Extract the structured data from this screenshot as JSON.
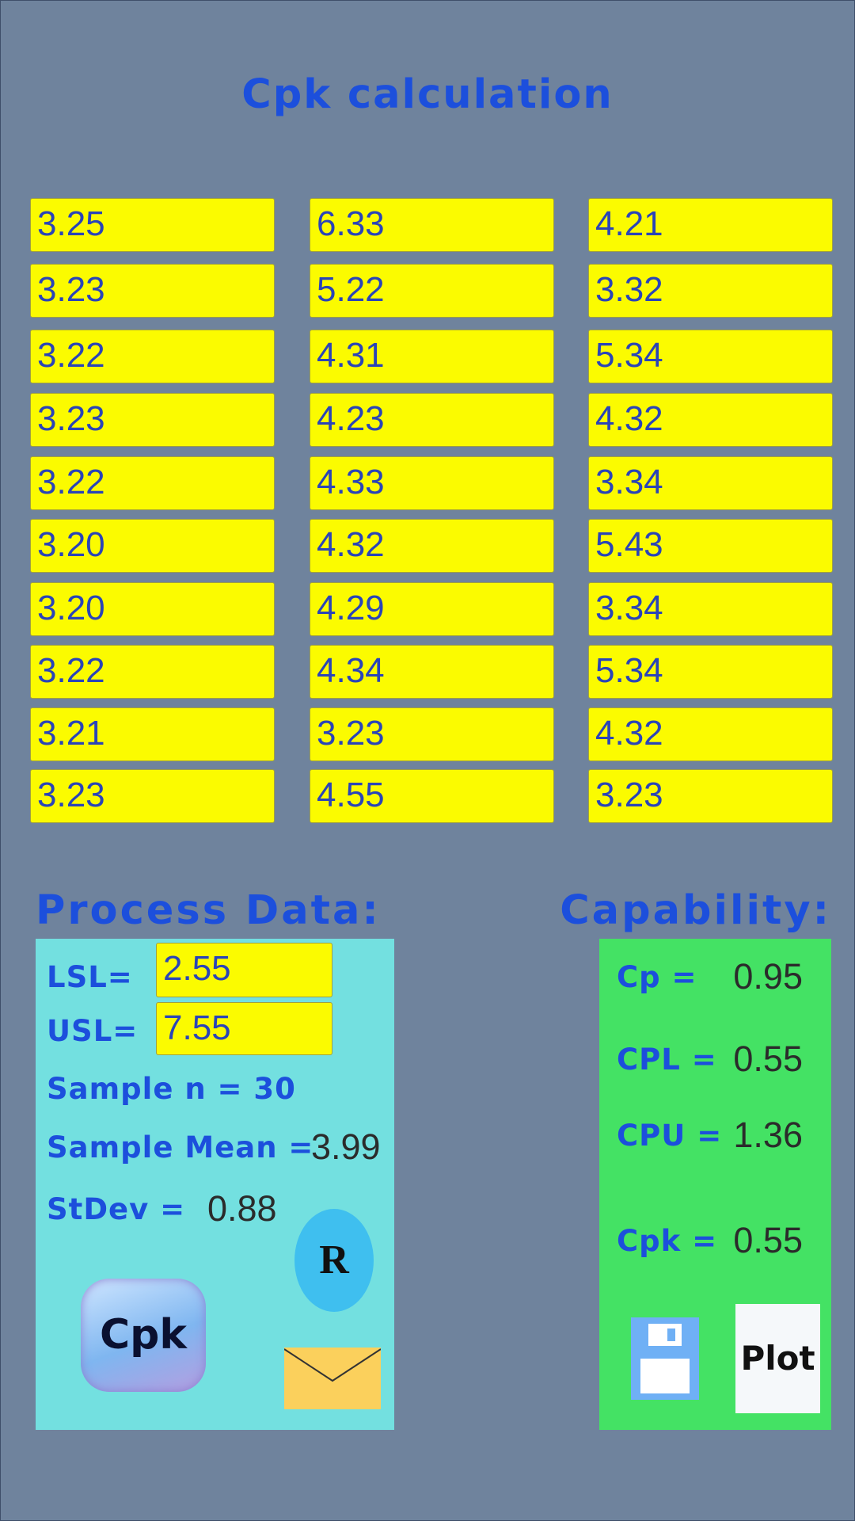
{
  "title": "Cpk calculation",
  "inputs": [
    [
      "3.25",
      "3.23",
      "3.22",
      "3.23",
      "3.22",
      "3.20",
      "3.20",
      "3.22",
      "3.21",
      "3.23"
    ],
    [
      "6.33",
      "5.22",
      "4.31",
      "4.23",
      "4.33",
      "4.32",
      "4.29",
      "4.34",
      "3.23",
      "4.55"
    ],
    [
      "4.21",
      "3.32",
      "5.34",
      "4.32",
      "3.34",
      "5.43",
      "3.34",
      "5.34",
      "4.32",
      "3.23"
    ]
  ],
  "process_data": {
    "heading": "Process Data:",
    "lsl_label": "LSL=",
    "lsl": "2.55",
    "usl_label": "USL=",
    "usl": "7.55",
    "sample_n": "Sample n = 30",
    "sample_mean_label": "Sample Mean =",
    "sample_mean": "3.99",
    "stdev_label": "StDev =",
    "stdev": "0.88"
  },
  "capability": {
    "heading": "Capability:",
    "rows": [
      {
        "label": "Cp =",
        "value": "0.95"
      },
      {
        "label": "CPL =",
        "value": "0.55"
      },
      {
        "label": "CPU =",
        "value": "1.36"
      },
      {
        "label": "Cpk =",
        "value": "0.55"
      }
    ]
  },
  "buttons": {
    "info": "Cpk",
    "r": "R",
    "plot": "Plot"
  }
}
